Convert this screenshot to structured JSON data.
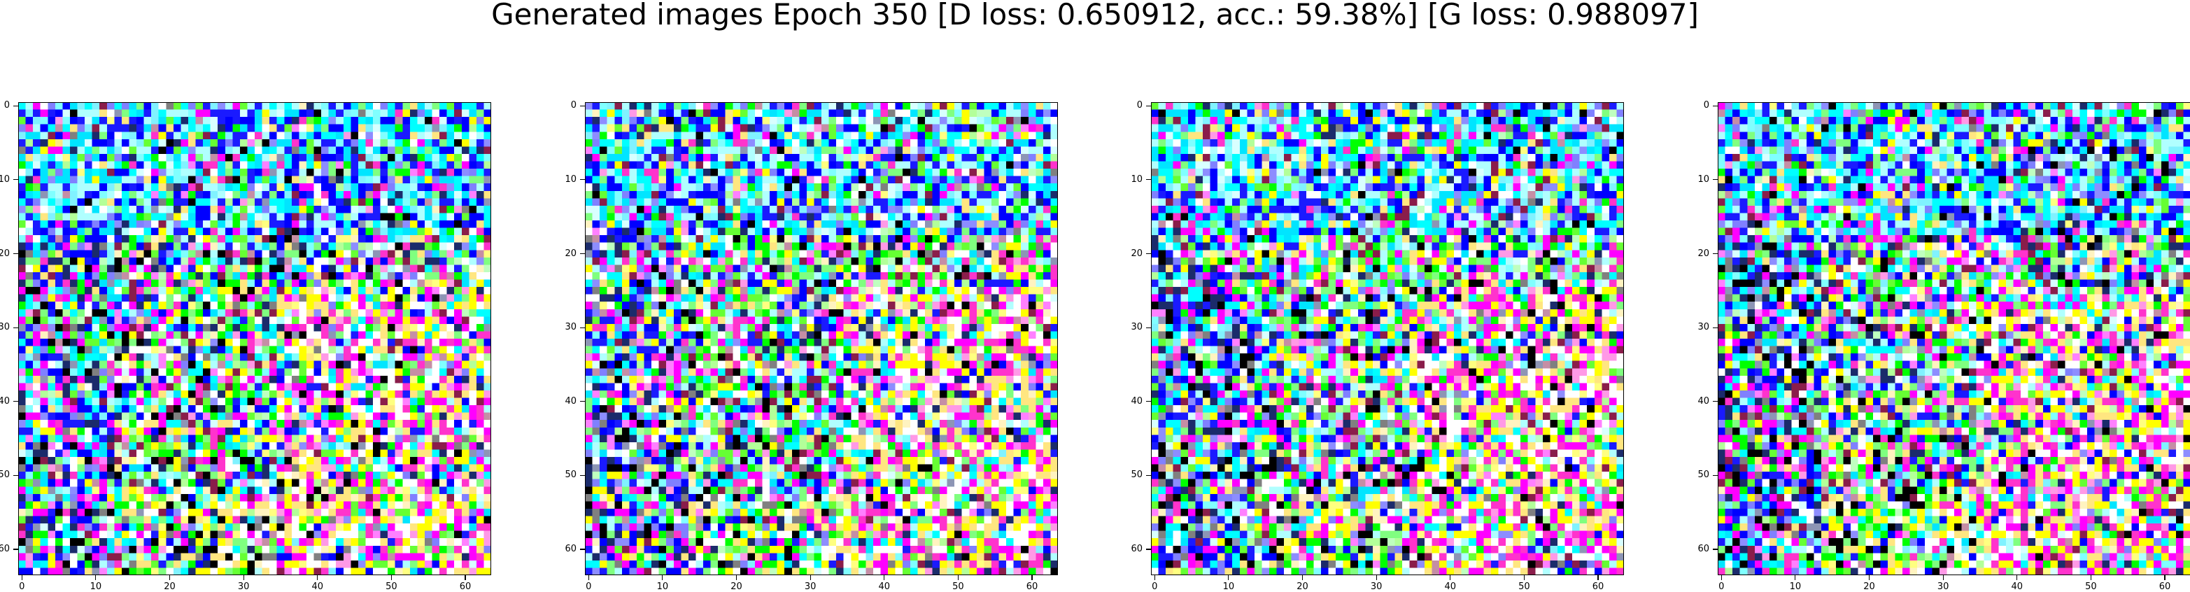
{
  "figure": {
    "title": "Generated images Epoch 350 [D loss: 0.650912, acc.: 59.38%] [G loss: 0.988097]"
  },
  "images": [
    {
      "grid_size": 64,
      "x_ticks": [
        "0",
        "10",
        "20",
        "30",
        "40",
        "50",
        "60"
      ],
      "y_ticks": [
        "0",
        "10",
        "20",
        "30",
        "40",
        "50",
        "60"
      ]
    },
    {
      "grid_size": 64,
      "x_ticks": [
        "0",
        "10",
        "20",
        "30",
        "40",
        "50",
        "60"
      ],
      "y_ticks": [
        "0",
        "10",
        "20",
        "30",
        "40",
        "50",
        "60"
      ]
    },
    {
      "grid_size": 64,
      "x_ticks": [
        "0",
        "10",
        "20",
        "30",
        "40",
        "50",
        "60"
      ],
      "y_ticks": [
        "0",
        "10",
        "20",
        "30",
        "40",
        "50",
        "60"
      ]
    },
    {
      "grid_size": 64,
      "x_ticks": [
        "0",
        "10",
        "20",
        "30",
        "40",
        "50",
        "60"
      ],
      "y_ticks": [
        "0",
        "10",
        "20",
        "30",
        "40",
        "50",
        "60"
      ]
    }
  ],
  "colors": {
    "palette": [
      "#00ffff",
      "#00e5ff",
      "#0000ff",
      "#1a1aff",
      "#00ff00",
      "#66ff33",
      "#ffff00",
      "#ffffff",
      "#ff00ff",
      "#ff33cc",
      "#000000",
      "#1b2b6b",
      "#8a1d4a",
      "#7fff7f",
      "#b0ffff",
      "#ffe680"
    ]
  }
}
